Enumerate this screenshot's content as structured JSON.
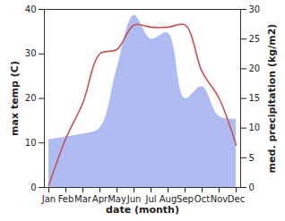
{
  "chart_data": {
    "type": "line",
    "categories": [
      "Jan",
      "Feb",
      "Mar",
      "Apr",
      "May",
      "Jun",
      "Jul",
      "Aug",
      "Sep",
      "Oct",
      "Nov",
      "Dec"
    ],
    "x_label": "date (month)",
    "y_label": "max temp (C)",
    "y2_label": "med. precipitation (kg/m2)",
    "ylim": [
      0,
      40
    ],
    "yticks": [
      0,
      10,
      20,
      30,
      40
    ],
    "y2lim": [
      0,
      30
    ],
    "y2ticks": [
      0,
      5,
      10,
      15,
      20,
      25,
      30
    ],
    "series": [
      {
        "type": "area",
        "axis": "y2",
        "color": "#aebcf2",
        "values": [
          8,
          8.5,
          9,
          10,
          20,
          29,
          25,
          26,
          15,
          17,
          12,
          11.5
        ]
      },
      {
        "type": "line",
        "color": "#c94f52",
        "values": [
          0.5,
          11,
          19,
          30,
          31,
          36.5,
          36,
          36,
          36.5,
          26,
          20,
          9.5
        ]
      }
    ]
  }
}
